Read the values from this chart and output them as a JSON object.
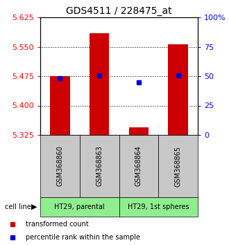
{
  "title": "GDS4511 / 228475_at",
  "samples": [
    "GSM368860",
    "GSM368863",
    "GSM368864",
    "GSM368865"
  ],
  "groups": [
    {
      "label": "HT29, parental",
      "indices": [
        0,
        1
      ]
    },
    {
      "label": "HT29, 1st spheres",
      "indices": [
        2,
        3
      ]
    }
  ],
  "y_min": 5.325,
  "y_max": 5.625,
  "y_ticks_left": [
    5.325,
    5.4,
    5.475,
    5.55,
    5.625
  ],
  "y_ticks_right": [
    0,
    25,
    50,
    75,
    100
  ],
  "bar_bottoms": [
    5.325,
    5.325,
    5.325,
    5.325
  ],
  "bar_tops": [
    5.475,
    5.585,
    5.345,
    5.557
  ],
  "bar_color": "#cc0000",
  "blue_pct": [
    48,
    50.5,
    45,
    50.5
  ],
  "blue_color": "#0000cc",
  "grid_color": "#000000",
  "bg_plot": "#ffffff",
  "bg_label": "#c8c8c8",
  "bg_group": "#90ee90",
  "cell_line_label": "cell line",
  "legend_red": "transformed count",
  "legend_blue": "percentile rank within the sample",
  "bar_width": 0.5
}
